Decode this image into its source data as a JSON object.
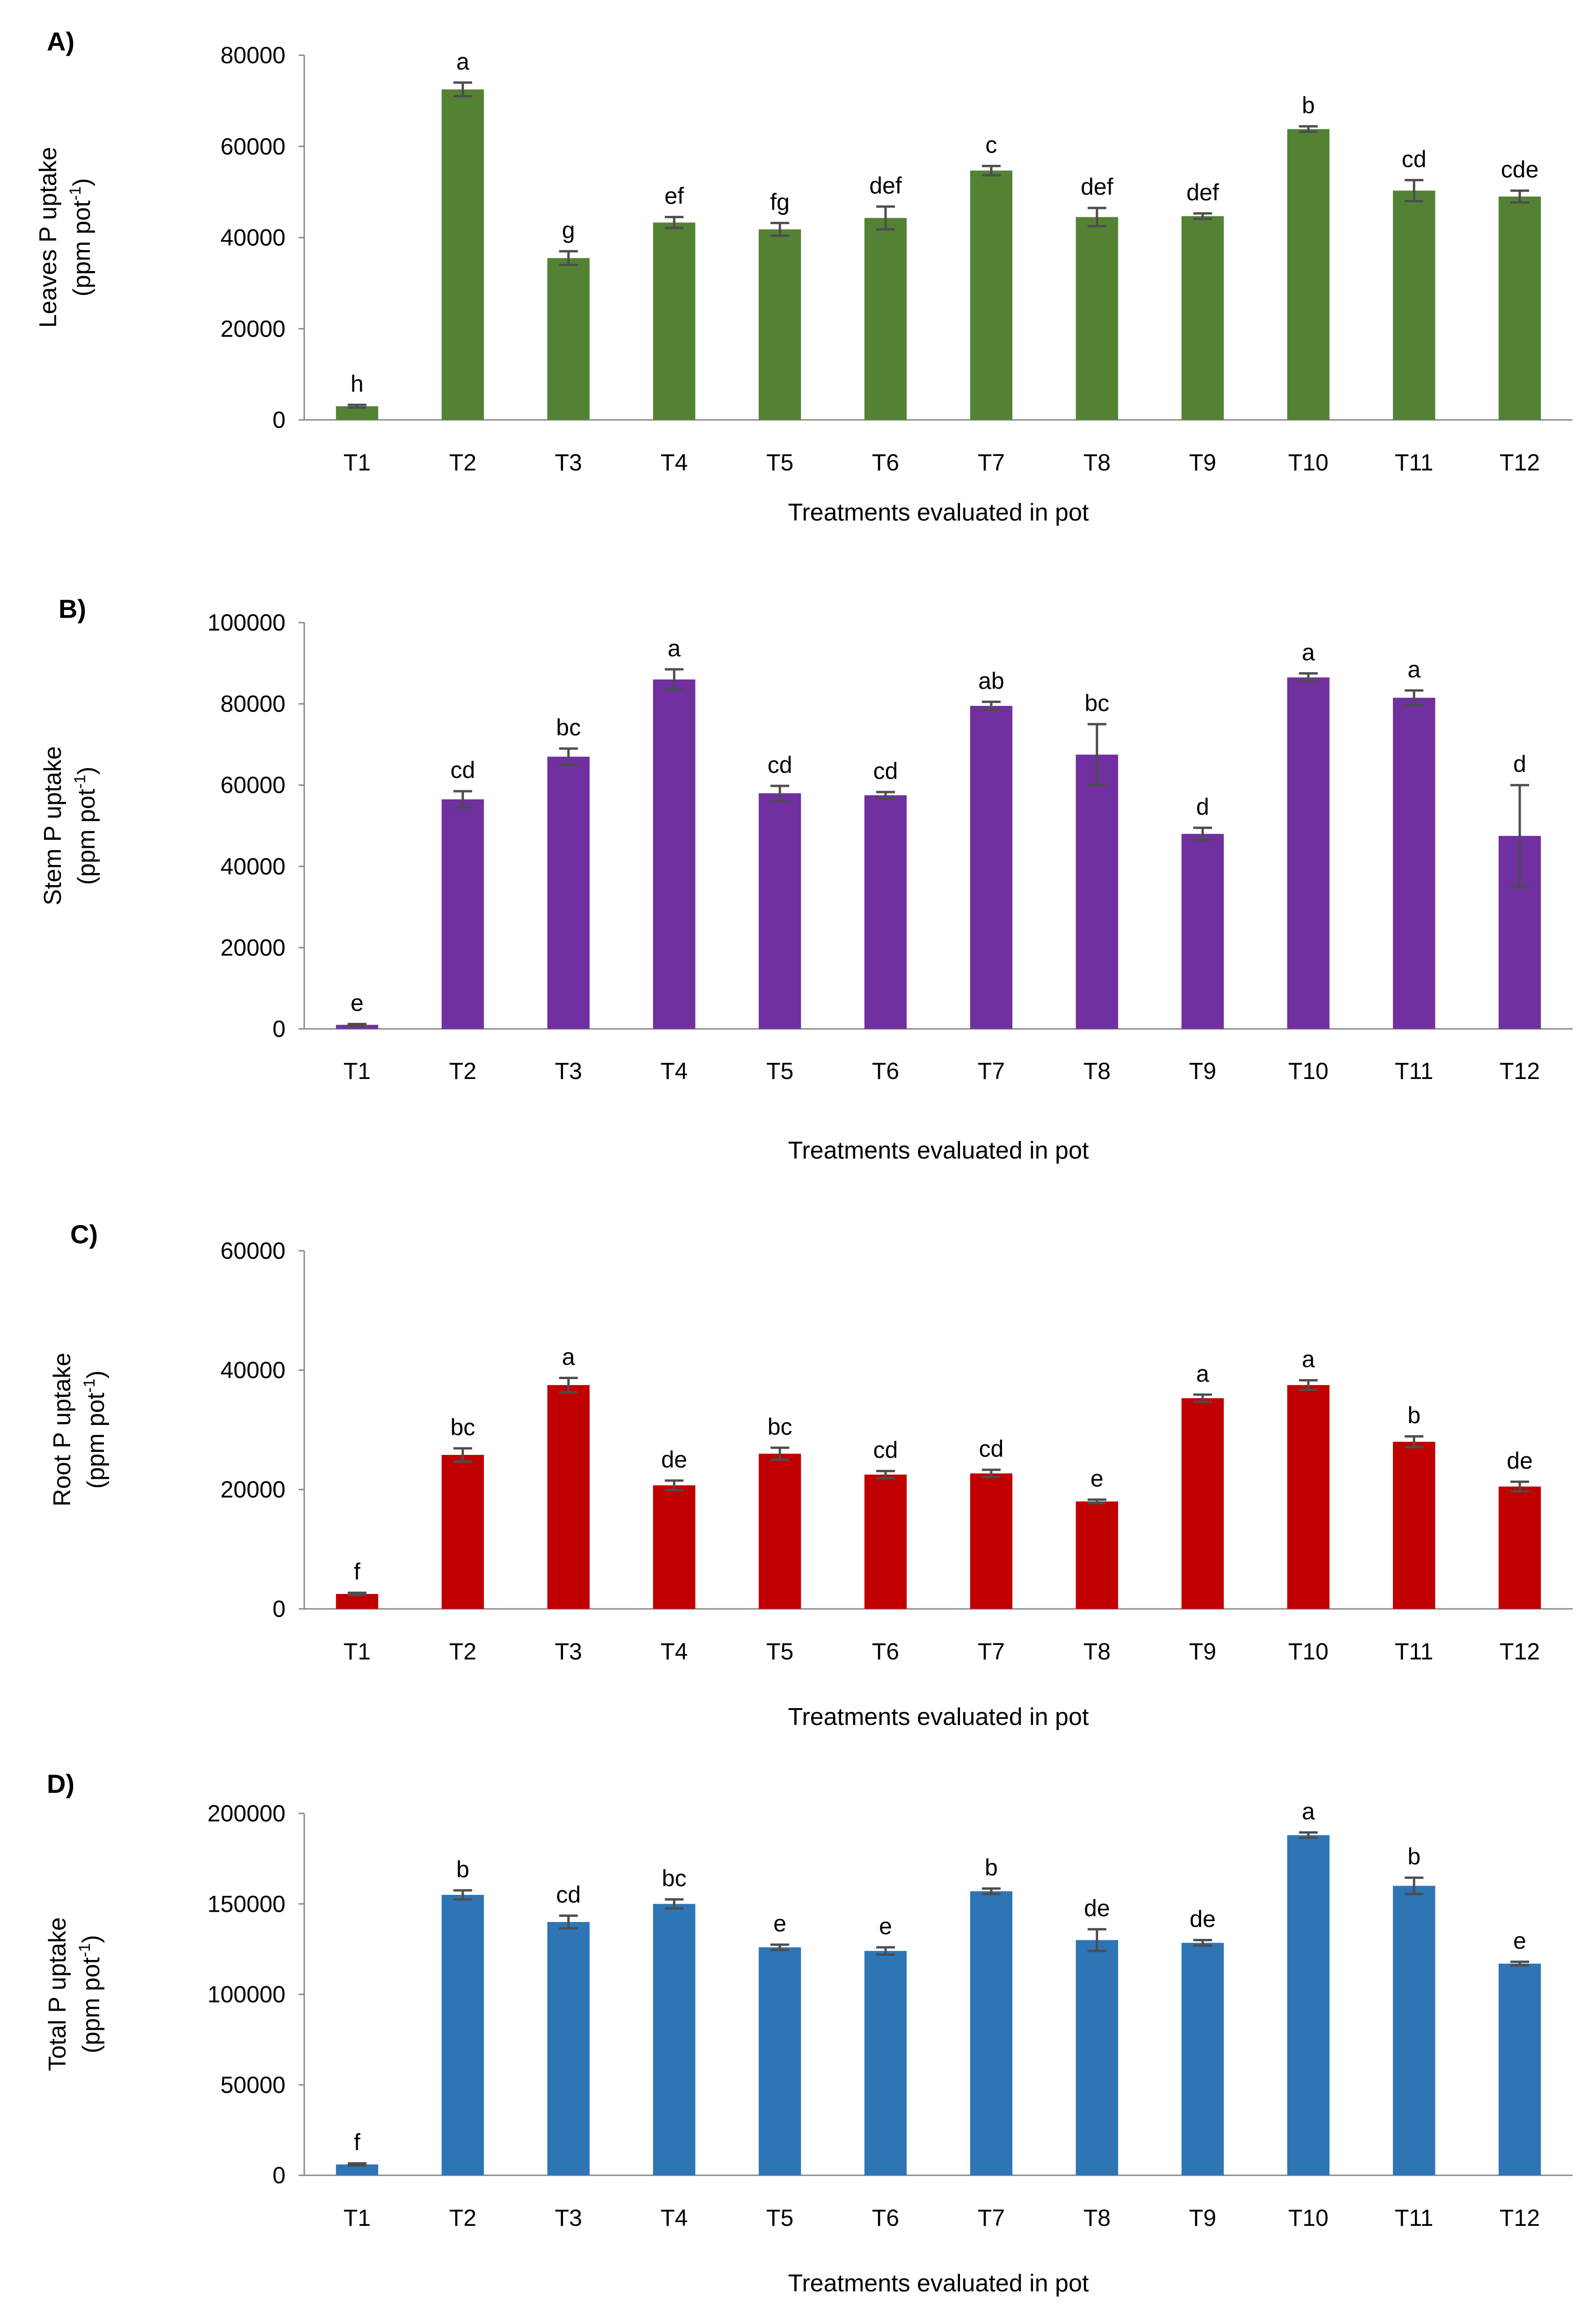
{
  "chart_data": [
    {
      "type": "bar",
      "panel_label": "A)",
      "color": "#548235",
      "ylabel_line1": "Leaves P uptake",
      "ylabel_line2_base": "(ppm pot",
      "ylabel_line2_sup": "-1",
      "ylabel_line2_end": ")",
      "xlabel": "Treatments evaluated in pot",
      "ylim": [
        0,
        80000
      ],
      "yticks": [
        0,
        20000,
        40000,
        60000,
        80000
      ],
      "categories": [
        "T1",
        "T2",
        "T3",
        "T4",
        "T5",
        "T6",
        "T7",
        "T8",
        "T9",
        "T10",
        "T11",
        "T12"
      ],
      "values": [
        3000,
        72500,
        35500,
        43300,
        41800,
        44300,
        54700,
        44500,
        44700,
        63800,
        50300,
        49000
      ],
      "errors": [
        300,
        1500,
        1500,
        1200,
        1400,
        2500,
        1000,
        2000,
        600,
        600,
        2300,
        1300
      ],
      "significance": [
        "h",
        "a",
        "g",
        "ef",
        "fg",
        "def",
        "c",
        "def",
        "def",
        "b",
        "cd",
        "cde"
      ]
    },
    {
      "type": "bar",
      "panel_label": "B)",
      "color": "#7030A0",
      "ylabel_line1": "Stem P uptake",
      "ylabel_line2_base": "(ppm pot",
      "ylabel_line2_sup": "-1",
      "ylabel_line2_end": ")",
      "xlabel": "Treatments evaluated in pot",
      "ylim": [
        0,
        100000
      ],
      "yticks": [
        0,
        20000,
        40000,
        60000,
        80000,
        100000
      ],
      "categories": [
        "T1",
        "T2",
        "T3",
        "T4",
        "T5",
        "T6",
        "T7",
        "T8",
        "T9",
        "T10",
        "T11",
        "T12"
      ],
      "values": [
        1000,
        56500,
        67000,
        86000,
        58000,
        57500,
        79500,
        67500,
        48000,
        86500,
        81500,
        47500
      ],
      "errors": [
        200,
        2000,
        2000,
        2500,
        1800,
        800,
        1000,
        7500,
        1500,
        1000,
        1800,
        12500
      ],
      "significance": [
        "e",
        "cd",
        "bc",
        "a",
        "cd",
        "cd",
        "ab",
        "bc",
        "d",
        "a",
        "a",
        "d"
      ]
    },
    {
      "type": "bar",
      "panel_label": "C)",
      "color": "#C00000",
      "ylabel_line1": "Root P uptake",
      "ylabel_line2_base": "(ppm pot",
      "ylabel_line2_sup": "-1",
      "ylabel_line2_end": ")",
      "xlabel": "Treatments evaluated in pot",
      "ylim": [
        0,
        60000
      ],
      "yticks": [
        0,
        20000,
        40000,
        60000
      ],
      "categories": [
        "T1",
        "T2",
        "T3",
        "T4",
        "T5",
        "T6",
        "T7",
        "T8",
        "T9",
        "T10",
        "T11",
        "T12"
      ],
      "values": [
        2500,
        25800,
        37500,
        20700,
        26000,
        22500,
        22700,
        18000,
        35300,
        37500,
        28000,
        20500
      ],
      "errors": [
        200,
        1100,
        1200,
        800,
        1000,
        600,
        600,
        300,
        600,
        800,
        900,
        800
      ],
      "significance": [
        "f",
        "bc",
        "a",
        "de",
        "bc",
        "cd",
        "cd",
        "e",
        "a",
        "a",
        "b",
        "de"
      ]
    },
    {
      "type": "bar",
      "panel_label": "D)",
      "color": "#2E75B6",
      "ylabel_line1": "Total P uptake",
      "ylabel_line2_base": "(ppm pot",
      "ylabel_line2_sup": "-1",
      "ylabel_line2_end": ")",
      "xlabel": "Treatments evaluated in pot",
      "ylim": [
        0,
        200000
      ],
      "yticks": [
        0,
        50000,
        100000,
        150000,
        200000
      ],
      "categories": [
        "T1",
        "T2",
        "T3",
        "T4",
        "T5",
        "T6",
        "T7",
        "T8",
        "T9",
        "T10",
        "T11",
        "T12"
      ],
      "values": [
        6000,
        155000,
        140000,
        150000,
        126000,
        124000,
        157000,
        130000,
        128500,
        188000,
        160000,
        117000
      ],
      "errors": [
        600,
        2500,
        3500,
        2500,
        1500,
        2000,
        1500,
        6000,
        1500,
        1500,
        4500,
        1000
      ],
      "significance": [
        "f",
        "b",
        "cd",
        "bc",
        "e",
        "e",
        "b",
        "de",
        "de",
        "a",
        "b",
        "e"
      ]
    }
  ]
}
